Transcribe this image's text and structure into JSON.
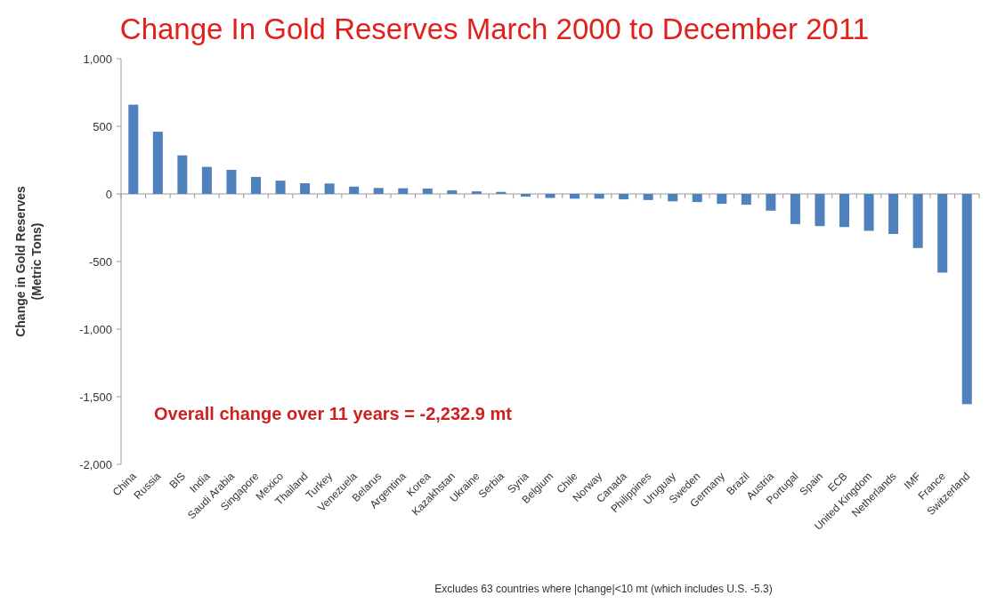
{
  "chart_data": {
    "type": "bar",
    "title": "Change In Gold Reserves March 2000 to December 2011",
    "ylabel": "Change in Gold Reserves\n(Metric Tons)",
    "categories": [
      "China",
      "Russia",
      "BIS",
      "India",
      "Saudi Arabia",
      "Singapore",
      "Mexico",
      "Thailand",
      "Turkey",
      "Venezuela",
      "Belarus",
      "Argentina",
      "Korea",
      "Kazakhstan",
      "Ukraine",
      "Serbia",
      "Syria",
      "Belgium",
      "Chile",
      "Norway",
      "Canada",
      "Philippines",
      "Uruguay",
      "Sweden",
      "Germany",
      "Brazil",
      "Austria",
      "Portugal",
      "Spain",
      "ECB",
      "United Kingdom",
      "Netherlands",
      "IMF",
      "France",
      "Switzerland"
    ],
    "values": [
      660,
      460,
      285,
      200,
      178,
      126,
      98,
      79,
      77,
      54,
      44,
      42,
      40,
      26,
      19,
      15,
      -20,
      -30,
      -35,
      -35,
      -40,
      -45,
      -55,
      -60,
      -73,
      -80,
      -124,
      -223,
      -238,
      -245,
      -273,
      -296,
      -400,
      -582,
      -1555
    ],
    "color": "#4f81bd",
    "ylim": [
      -2000,
      1000
    ],
    "yticks": [
      {
        "value": -2000,
        "label": "-2,000"
      },
      {
        "value": -1500,
        "label": "-1,500"
      },
      {
        "value": -1000,
        "label": "-1,000"
      },
      {
        "value": -500,
        "label": "-500"
      },
      0,
      500,
      {
        "value": 1000,
        "label": "1,000"
      }
    ],
    "annotations": [
      "Overall change over 11 years = -2,232.9 mt",
      "Excludes 63 countries where |change|<10 mt (which includes U.S. -5.3)"
    ],
    "orientation": "vertical"
  }
}
